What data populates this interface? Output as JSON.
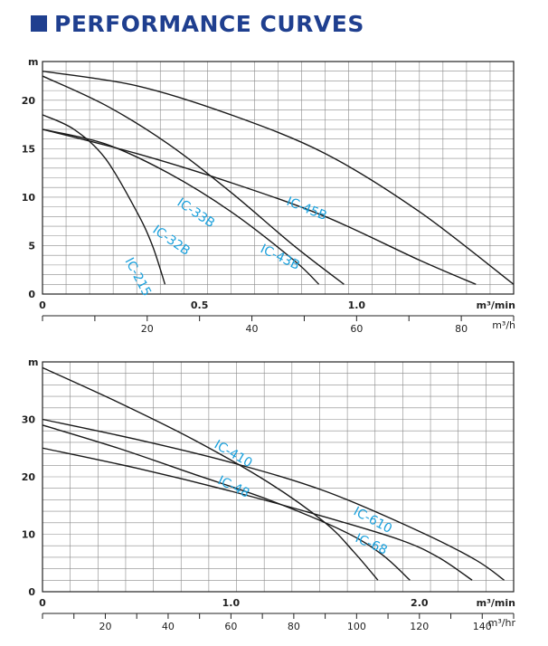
{
  "title": "PERFORMANCE CURVES",
  "colors": {
    "title": "#1f3f8f",
    "curve": "#1a1a1a",
    "label": "#1aa0dc",
    "grid": "#8a8a8a"
  },
  "chart_data": [
    {
      "type": "line",
      "ylabel": "m",
      "ylim": [
        0,
        24
      ],
      "yticks": [
        0,
        5,
        10,
        15,
        20
      ],
      "xlabel_primary": "m³/min",
      "xlim_primary": [
        0,
        1.5
      ],
      "xticks_primary": [
        {
          "value": 0,
          "label": "0"
        },
        {
          "value": 0.5,
          "label": "0.5"
        },
        {
          "value": 1.0,
          "label": "1.0"
        }
      ],
      "xlabel_secondary": "m³/h",
      "xticks_secondary": [
        {
          "value": 20,
          "label": "20"
        },
        {
          "value": 40,
          "label": "40"
        },
        {
          "value": 60,
          "label": "60"
        },
        {
          "value": 80,
          "label": "80"
        }
      ],
      "grid": true,
      "series": [
        {
          "name": "IC-215",
          "x": [
            0,
            0.1,
            0.2,
            0.3,
            0.35,
            0.39
          ],
          "y": [
            18.5,
            17,
            14,
            8.5,
            5,
            1
          ]
        },
        {
          "name": "IC-32B",
          "x": [
            0,
            0.2,
            0.4,
            0.6,
            0.8,
            0.88
          ],
          "y": [
            17,
            15.5,
            12.5,
            8.5,
            3.5,
            1
          ]
        },
        {
          "name": "IC-33B",
          "x": [
            0,
            0.2,
            0.4,
            0.6,
            0.8,
            0.96
          ],
          "y": [
            22.5,
            19.5,
            15.5,
            10.5,
            5,
            1
          ]
        },
        {
          "name": "IC-43B",
          "x": [
            0,
            0.3,
            0.6,
            0.9,
            1.2,
            1.38
          ],
          "y": [
            17,
            14.5,
            11.5,
            8,
            3.5,
            1
          ]
        },
        {
          "name": "IC-45B",
          "x": [
            0,
            0.3,
            0.6,
            0.9,
            1.2,
            1.5
          ],
          "y": [
            23,
            21.5,
            18.5,
            14.5,
            8.5,
            1
          ]
        }
      ],
      "curve_labels": [
        "IC-215",
        "IC-32B",
        "IC-33B",
        "IC-43B",
        "IC-45B"
      ]
    },
    {
      "type": "line",
      "ylabel": "m",
      "ylim": [
        0,
        40
      ],
      "yticks": [
        0,
        10,
        20,
        30
      ],
      "xlabel_primary": "m³/min",
      "xlim_primary": [
        0,
        2.5
      ],
      "xticks_primary": [
        {
          "value": 0,
          "label": "0"
        },
        {
          "value": 1.0,
          "label": "1.0"
        },
        {
          "value": 2.0,
          "label": "2.0"
        }
      ],
      "xlabel_secondary": "m³/hr",
      "xticks_secondary": [
        {
          "value": 20,
          "label": "20"
        },
        {
          "value": 40,
          "label": "40"
        },
        {
          "value": 60,
          "label": "60"
        },
        {
          "value": 80,
          "label": "80"
        },
        {
          "value": 100,
          "label": "100"
        },
        {
          "value": 120,
          "label": "120"
        },
        {
          "value": 140,
          "label": "140"
        }
      ],
      "grid": true,
      "series": [
        {
          "name": "IC-410",
          "x": [
            0,
            0.4,
            0.8,
            1.2,
            1.5,
            1.65,
            1.78
          ],
          "y": [
            39,
            33,
            26.5,
            19,
            12,
            7,
            2
          ]
        },
        {
          "name": "IC-48",
          "x": [
            0,
            0.4,
            0.8,
            1.2,
            1.6,
            1.8,
            1.95
          ],
          "y": [
            29,
            25,
            20.5,
            16,
            10.5,
            6.5,
            2
          ]
        },
        {
          "name": "IC-68",
          "x": [
            0,
            0.5,
            1.0,
            1.5,
            1.9,
            2.1,
            2.28
          ],
          "y": [
            25,
            21.5,
            17.5,
            13,
            9,
            6,
            2
          ]
        },
        {
          "name": "IC-610",
          "x": [
            0,
            0.5,
            1.0,
            1.5,
            2.0,
            2.3,
            2.45
          ],
          "y": [
            30,
            26.5,
            22.5,
            17.5,
            10.5,
            5.5,
            2
          ]
        }
      ],
      "curve_labels": [
        "IC-410",
        "IC-48",
        "IC-68",
        "IC-610"
      ]
    }
  ]
}
